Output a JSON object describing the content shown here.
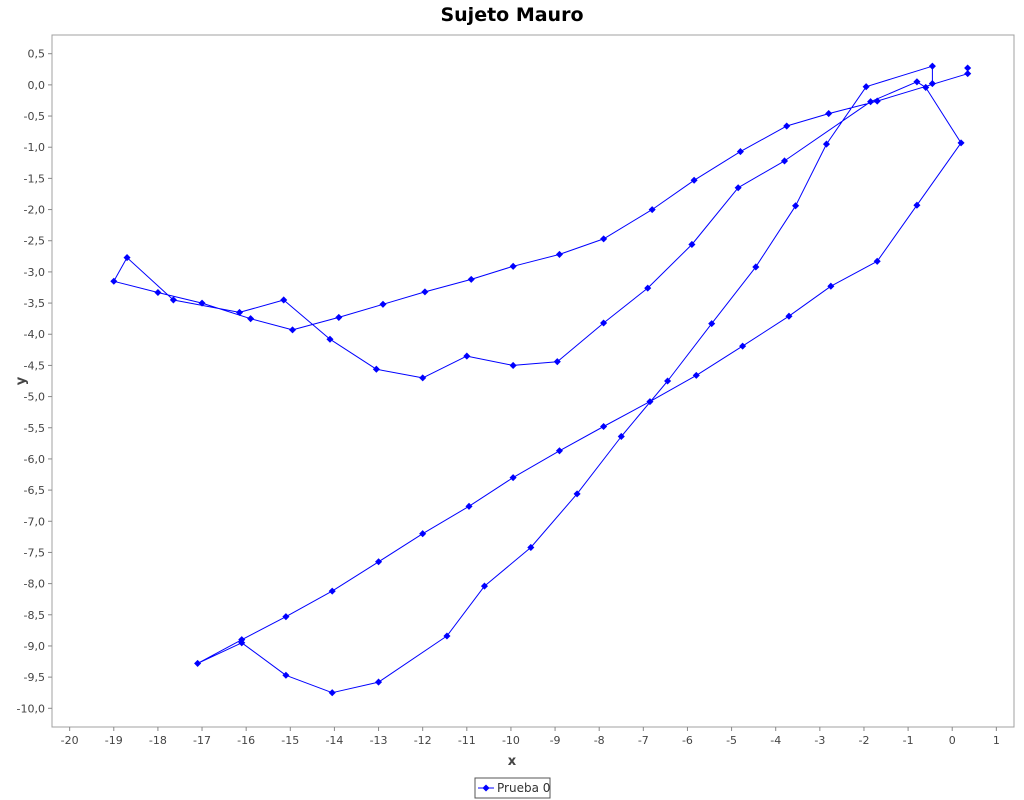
{
  "chart_data": {
    "type": "line",
    "title": "Sujeto Mauro",
    "xlabel": "x",
    "ylabel": "y",
    "xlim": [
      -20.4,
      1.4
    ],
    "ylim": [
      -10.3,
      0.8
    ],
    "x_ticks": [
      -20,
      -19,
      -18,
      -17,
      -16,
      -15,
      -14,
      -13,
      -12,
      -11,
      -10,
      -9,
      -8,
      -7,
      -6,
      -5,
      -4,
      -3,
      -2,
      -1,
      0,
      1
    ],
    "x_tick_labels": [
      "-20",
      "-19",
      "-18",
      "-17",
      "-16",
      "-15",
      "-14",
      "-13",
      "-12",
      "-11",
      "-10",
      "-9",
      "-8",
      "-7",
      "-6",
      "-5",
      "-4",
      "-3",
      "-2",
      "-1",
      "0",
      "1"
    ],
    "y_ticks": [
      0.5,
      0,
      -0.5,
      -1,
      -1.5,
      -2,
      -2.5,
      -3,
      -3.5,
      -4,
      -4.5,
      -5,
      -5.5,
      -6,
      -6.5,
      -7,
      -7.5,
      -8,
      -8.5,
      -9,
      -9.5,
      -10
    ],
    "y_tick_labels": [
      "0,5",
      "0,0",
      "-0,5",
      "-1,0",
      "-1,5",
      "-2,0",
      "-2,5",
      "-3,0",
      "-3,5",
      "-4,0",
      "-4,5",
      "-5,0",
      "-5,5",
      "-6,0",
      "-6,5",
      "-7,0",
      "-7,5",
      "-8,0",
      "-8,5",
      "-9,0",
      "-9,5",
      "-10,0"
    ],
    "grid": false,
    "legend_position": "bottom",
    "series": [
      {
        "name": "Prueba 0",
        "color": "#0000ff",
        "marker": "diamond",
        "points": [
          [
            0.35,
            0.27
          ],
          [
            0.35,
            0.18
          ],
          [
            -1.7,
            -0.26
          ],
          [
            -2.8,
            -0.46
          ],
          [
            -3.75,
            -0.66
          ],
          [
            -4.8,
            -1.07
          ],
          [
            -5.85,
            -1.53
          ],
          [
            -6.8,
            -2.0
          ],
          [
            -7.9,
            -2.47
          ],
          [
            -8.9,
            -2.72
          ],
          [
            -9.95,
            -2.91
          ],
          [
            -10.9,
            -3.12
          ],
          [
            -11.95,
            -3.32
          ],
          [
            -12.9,
            -3.52
          ],
          [
            -13.9,
            -3.73
          ],
          [
            -14.95,
            -3.93
          ],
          [
            -15.9,
            -3.75
          ],
          [
            -17.0,
            -3.5
          ],
          [
            -18.0,
            -3.33
          ],
          [
            -19.0,
            -3.15
          ],
          [
            -18.7,
            -2.77
          ],
          [
            -17.65,
            -3.45
          ],
          [
            -16.15,
            -3.65
          ],
          [
            -15.15,
            -3.45
          ],
          [
            -14.1,
            -4.08
          ],
          [
            -13.05,
            -4.56
          ],
          [
            -12.0,
            -4.7
          ],
          [
            -11.0,
            -4.35
          ],
          [
            -9.95,
            -4.5
          ],
          [
            -8.95,
            -4.44
          ],
          [
            -7.9,
            -3.82
          ],
          [
            -6.9,
            -3.26
          ],
          [
            -5.9,
            -2.56
          ],
          [
            -4.85,
            -1.65
          ],
          [
            -3.8,
            -1.22
          ],
          [
            -1.85,
            -0.27
          ],
          [
            -0.8,
            0.05
          ],
          [
            -0.6,
            -0.04
          ],
          [
            0.2,
            -0.93
          ],
          [
            -0.8,
            -1.93
          ],
          [
            -1.7,
            -2.83
          ],
          [
            -2.75,
            -3.23
          ],
          [
            -3.7,
            -3.71
          ],
          [
            -4.75,
            -4.19
          ],
          [
            -5.8,
            -4.66
          ],
          [
            -6.85,
            -5.08
          ],
          [
            -7.9,
            -5.48
          ],
          [
            -8.9,
            -5.87
          ],
          [
            -9.95,
            -6.3
          ],
          [
            -10.95,
            -6.76
          ],
          [
            -12.0,
            -7.2
          ],
          [
            -13.0,
            -7.65
          ],
          [
            -14.05,
            -8.12
          ],
          [
            -15.1,
            -8.53
          ],
          [
            -16.1,
            -8.9
          ],
          [
            -17.1,
            -9.28
          ],
          [
            -16.1,
            -8.95
          ],
          [
            -15.1,
            -9.47
          ],
          [
            -14.05,
            -9.75
          ],
          [
            -13.0,
            -9.58
          ],
          [
            -11.45,
            -8.84
          ],
          [
            -10.6,
            -8.04
          ],
          [
            -9.55,
            -7.42
          ],
          [
            -8.5,
            -6.56
          ],
          [
            -7.5,
            -5.64
          ],
          [
            -6.45,
            -4.75
          ],
          [
            -5.45,
            -3.83
          ],
          [
            -4.45,
            -2.92
          ],
          [
            -3.55,
            -1.94
          ],
          [
            -2.85,
            -0.95
          ],
          [
            -1.95,
            -0.03
          ],
          [
            -0.45,
            0.3
          ],
          [
            -0.45,
            0.02
          ]
        ]
      }
    ]
  }
}
